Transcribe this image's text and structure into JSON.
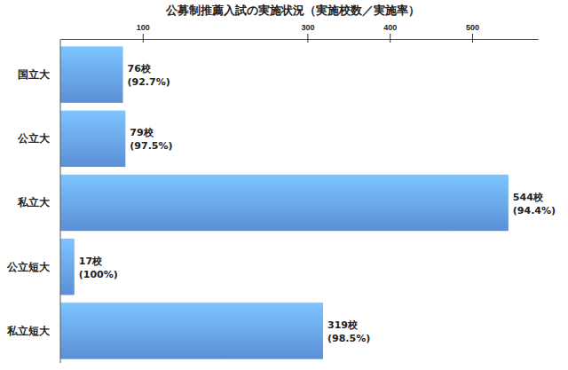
{
  "chart_data": {
    "type": "bar",
    "title": "公募制推薦入試の実施状況（実施校数／実施率）",
    "orientation": "horizontal",
    "categories": [
      "国立大",
      "公立大",
      "私立大",
      "公立短大",
      "私立短大"
    ],
    "values": [
      76,
      79,
      544,
      17,
      319
    ],
    "value_labels": [
      "76校",
      "79校",
      "544校",
      "17校",
      "319校"
    ],
    "rates": [
      92.7,
      97.5,
      94.4,
      100,
      98.5
    ],
    "rate_labels": [
      "(92.7%)",
      "(97.5%)",
      "(94.4%)",
      "(100%)",
      "(98.5%)"
    ],
    "color": "#5b8fd6",
    "xlim": [
      0,
      580
    ],
    "xticks": [
      100,
      300,
      400,
      500
    ],
    "grid": false,
    "data_labels": true
  }
}
